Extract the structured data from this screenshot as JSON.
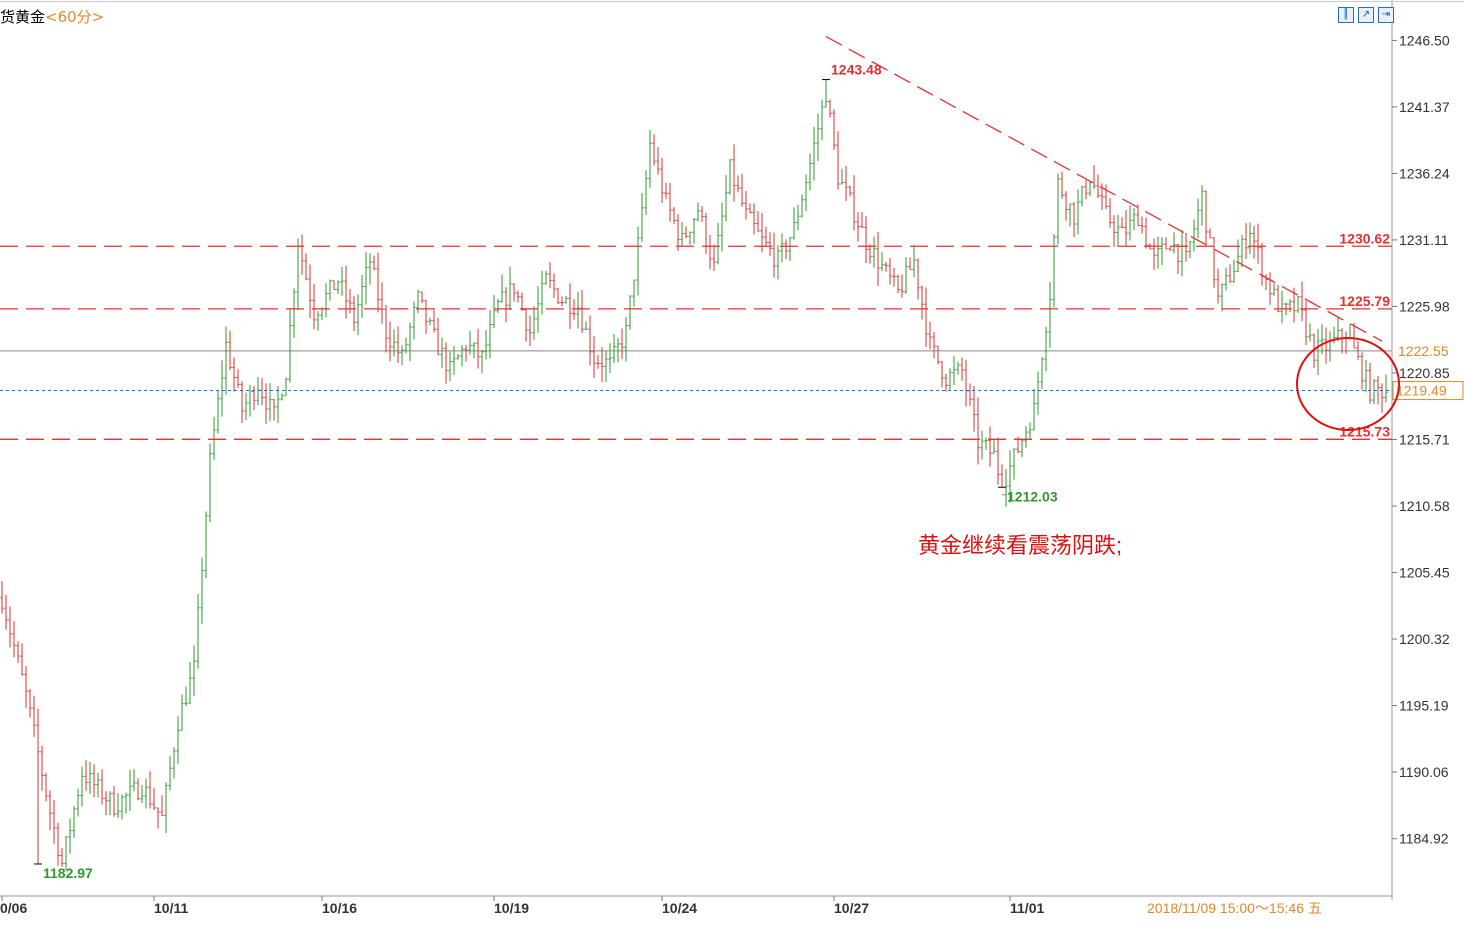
{
  "header": {
    "symbol": "货黄金",
    "period": "<60分>",
    "buttons": [
      "chart-mode",
      "draw-line",
      "expand"
    ]
  },
  "colors": {
    "up": "#2e9a2e",
    "down": "#e03030",
    "line": "#e83030",
    "current": "#1a6fd0",
    "tag": "#e08a2a"
  },
  "chart_data": {
    "type": "ohlc",
    "ylim": [
      1180.5,
      1249.0
    ],
    "yticks": [
      "1246.50",
      "1241.37",
      "1236.24",
      "1231.11",
      "1225.98",
      "1220.85",
      "1215.71",
      "1210.58",
      "1205.45",
      "1200.32",
      "1195.19",
      "1190.06",
      "1184.92"
    ],
    "ytick_values": [
      1246.5,
      1241.37,
      1236.24,
      1231.11,
      1225.98,
      1220.85,
      1215.71,
      1210.58,
      1205.45,
      1200.32,
      1195.19,
      1190.06,
      1184.92
    ],
    "x_labels": [
      "0/06",
      "10/11",
      "10/16",
      "10/19",
      "10/24",
      "10/27",
      "11/01"
    ],
    "waypoints": [
      [
        0,
        1203.5
      ],
      [
        6,
        1196.0
      ],
      [
        12,
        1187.0
      ],
      [
        15,
        1183.0
      ],
      [
        20,
        1190.0
      ],
      [
        28,
        1187.5
      ],
      [
        35,
        1189.0
      ],
      [
        40,
        1186.5
      ],
      [
        44,
        1194.0
      ],
      [
        48,
        1198.0
      ],
      [
        52,
        1214.0
      ],
      [
        56,
        1223.0
      ],
      [
        60,
        1218.0
      ],
      [
        64,
        1220.0
      ],
      [
        68,
        1217.5
      ],
      [
        71,
        1221.0
      ],
      [
        74,
        1231.0
      ],
      [
        78,
        1225.5
      ],
      [
        84,
        1228.0
      ],
      [
        88,
        1225.0
      ],
      [
        92,
        1229.5
      ],
      [
        96,
        1224.0
      ],
      [
        100,
        1222.0
      ],
      [
        104,
        1226.5
      ],
      [
        108,
        1223.5
      ],
      [
        112,
        1221.0
      ],
      [
        116,
        1223.0
      ],
      [
        120,
        1222.0
      ],
      [
        124,
        1226.0
      ],
      [
        128,
        1227.5
      ],
      [
        132,
        1224.0
      ],
      [
        136,
        1228.0
      ],
      [
        140,
        1226.5
      ],
      [
        144,
        1226.0
      ],
      [
        148,
        1222.0
      ],
      [
        152,
        1221.5
      ],
      [
        156,
        1224.0
      ],
      [
        160,
        1233.0
      ],
      [
        162,
        1238.5
      ],
      [
        166,
        1234.0
      ],
      [
        170,
        1231.0
      ],
      [
        174,
        1233.5
      ],
      [
        178,
        1229.0
      ],
      [
        182,
        1236.5
      ],
      [
        186,
        1233.0
      ],
      [
        190,
        1231.0
      ],
      [
        194,
        1229.5
      ],
      [
        198,
        1232.0
      ],
      [
        202,
        1237.0
      ],
      [
        206,
        1242.5
      ],
      [
        209,
        1236.0
      ],
      [
        212,
        1234.0
      ],
      [
        216,
        1231.0
      ],
      [
        220,
        1229.0
      ],
      [
        224,
        1227.0
      ],
      [
        228,
        1229.5
      ],
      [
        232,
        1223.0
      ],
      [
        236,
        1220.5
      ],
      [
        240,
        1221.0
      ],
      [
        244,
        1215.5
      ],
      [
        248,
        1214.5
      ],
      [
        250,
        1212.2
      ],
      [
        254,
        1215.0
      ],
      [
        258,
        1218.0
      ],
      [
        262,
        1227.0
      ],
      [
        264,
        1235.5
      ],
      [
        268,
        1233.0
      ],
      [
        272,
        1236.0
      ],
      [
        276,
        1233.0
      ],
      [
        280,
        1231.5
      ],
      [
        284,
        1233.0
      ],
      [
        288,
        1229.5
      ],
      [
        292,
        1231.0
      ],
      [
        296,
        1229.5
      ],
      [
        300,
        1234.5
      ],
      [
        304,
        1226.5
      ],
      [
        308,
        1229.0
      ],
      [
        312,
        1232.0
      ],
      [
        316,
        1228.0
      ],
      [
        320,
        1225.5
      ],
      [
        324,
        1226.0
      ],
      [
        328,
        1222.5
      ],
      [
        332,
        1223.0
      ],
      [
        336,
        1224.0
      ],
      [
        340,
        1221.0
      ],
      [
        342,
        1219.5
      ]
    ],
    "horizontal_levels": [
      {
        "value": 1230.62,
        "label": "1230.62"
      },
      {
        "value": 1225.79,
        "label": "1225.79"
      },
      {
        "value": 1215.73,
        "label": "1215.73"
      }
    ],
    "reference_line": 1222.55,
    "current_price": 1219.49,
    "current_label": "1219.49",
    "reference_label": "1222.55",
    "trendline": [
      [
        206,
        1246.8
      ],
      [
        345,
        1223.3
      ]
    ],
    "extremes": [
      {
        "label": "1243.48",
        "value": 1243.48,
        "bar": 206,
        "kind": "high"
      },
      {
        "label": "1212.03",
        "value": 1212.03,
        "bar": 250,
        "kind": "low"
      },
      {
        "label": "1182.97",
        "value": 1182.97,
        "bar": 9,
        "kind": "low"
      }
    ],
    "annotation": "黄金继续看震荡阴跌;",
    "timestamp": "2018/11/09 15:00～15:46 五"
  }
}
